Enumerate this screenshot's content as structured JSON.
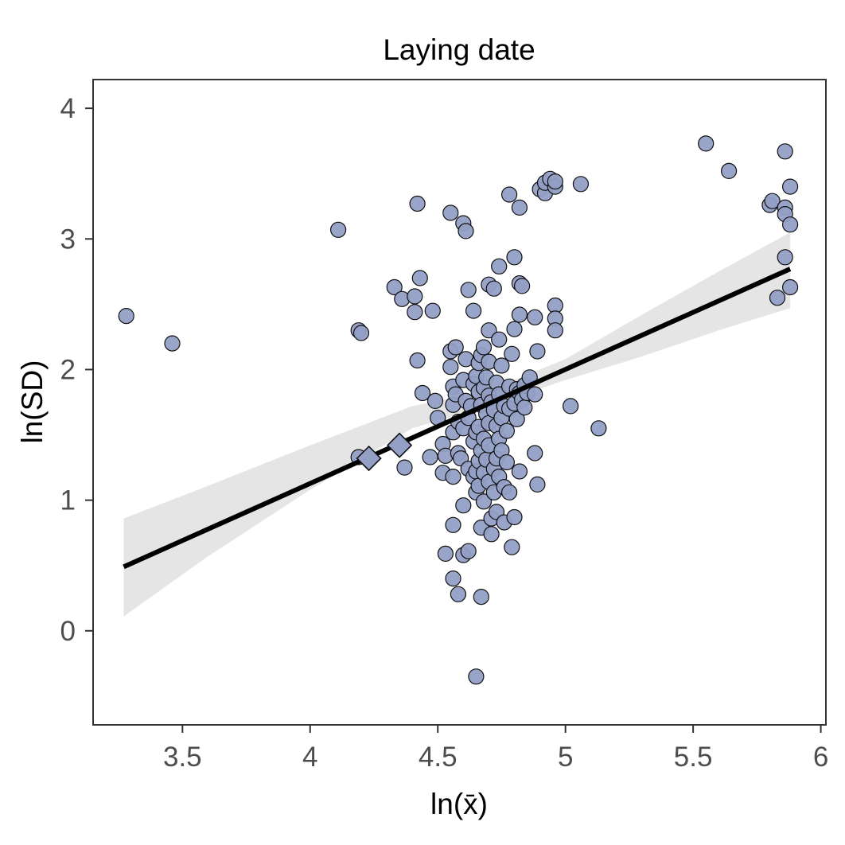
{
  "chart_data": {
    "type": "scatter",
    "title": "Laying date",
    "xlabel": "ln(x̄)",
    "ylabel": "ln(SD)",
    "xlim": [
      3.15,
      6.02
    ],
    "ylim": [
      -0.72,
      4.22
    ],
    "x_ticks": [
      3.5,
      4,
      4.5,
      5,
      5.5,
      6
    ],
    "x_tick_labels": [
      "3.5",
      "4",
      "4.5",
      "5",
      "5.5",
      "6"
    ],
    "y_ticks": [
      0,
      1,
      2,
      3,
      4
    ],
    "y_tick_labels": [
      "0",
      "1",
      "2",
      "3",
      "4"
    ],
    "grid": false,
    "colors": {
      "point_fill": "#949fc6",
      "point_stroke": "#111111",
      "fit_line": "#000000",
      "ci_band": "#bdbdbd"
    },
    "fit": {
      "type": "linear",
      "start": {
        "x": 3.27,
        "y": 0.49
      },
      "end": {
        "x": 5.88,
        "y": 2.77
      },
      "ci": [
        [
          3.27,
          0.11,
          0.86
        ],
        [
          3.6,
          0.57,
          1.11
        ],
        [
          4.0,
          1.08,
          1.42
        ],
        [
          4.4,
          1.55,
          1.72
        ],
        [
          4.7,
          1.72,
          1.84
        ],
        [
          5.0,
          1.92,
          2.08
        ],
        [
          5.3,
          2.1,
          2.42
        ],
        [
          5.6,
          2.3,
          2.75
        ],
        [
          5.88,
          2.47,
          3.05
        ]
      ]
    },
    "series": [
      {
        "marker": "circle",
        "points": [
          [
            3.28,
            2.41
          ],
          [
            3.46,
            2.2
          ],
          [
            4.11,
            3.07
          ],
          [
            4.19,
            2.3
          ],
          [
            4.2,
            2.28
          ],
          [
            4.19,
            1.33
          ],
          [
            4.33,
            2.63
          ],
          [
            4.36,
            2.54
          ],
          [
            4.37,
            1.25
          ],
          [
            4.41,
            2.56
          ],
          [
            4.41,
            2.44
          ],
          [
            4.42,
            3.27
          ],
          [
            4.43,
            2.7
          ],
          [
            4.42,
            2.07
          ],
          [
            4.44,
            1.82
          ],
          [
            4.47,
            1.33
          ],
          [
            4.48,
            2.45
          ],
          [
            4.49,
            1.76
          ],
          [
            4.5,
            1.63
          ],
          [
            4.52,
            1.43
          ],
          [
            4.52,
            1.21
          ],
          [
            4.53,
            1.34
          ],
          [
            4.53,
            0.59
          ],
          [
            4.55,
            3.2
          ],
          [
            4.55,
            2.14
          ],
          [
            4.55,
            2.02
          ],
          [
            4.56,
            1.87
          ],
          [
            4.56,
            1.73
          ],
          [
            4.56,
            1.52
          ],
          [
            4.56,
            1.18
          ],
          [
            4.56,
            0.81
          ],
          [
            4.56,
            0.4
          ],
          [
            4.57,
            2.17
          ],
          [
            4.57,
            1.81
          ],
          [
            4.58,
            1.6
          ],
          [
            4.58,
            1.36
          ],
          [
            4.58,
            0.28
          ],
          [
            4.59,
            1.32
          ],
          [
            4.6,
            3.12
          ],
          [
            4.6,
            1.92
          ],
          [
            4.6,
            1.55
          ],
          [
            4.6,
            0.96
          ],
          [
            4.6,
            0.58
          ],
          [
            4.61,
            3.06
          ],
          [
            4.61,
            2.08
          ],
          [
            4.61,
            1.76
          ],
          [
            4.62,
            2.61
          ],
          [
            4.62,
            1.63
          ],
          [
            4.62,
            1.24
          ],
          [
            4.62,
            0.61
          ],
          [
            4.63,
            1.72
          ],
          [
            4.64,
            2.45
          ],
          [
            4.64,
            1.89
          ],
          [
            4.64,
            1.45
          ],
          [
            4.64,
            1.18
          ],
          [
            4.65,
            1.95
          ],
          [
            4.65,
            1.52
          ],
          [
            4.65,
            1.22
          ],
          [
            4.65,
            1.06
          ],
          [
            4.65,
            -0.35
          ],
          [
            4.66,
            2.05
          ],
          [
            4.66,
            1.83
          ],
          [
            4.66,
            1.56
          ],
          [
            4.66,
            1.3
          ],
          [
            4.66,
            1.11
          ],
          [
            4.67,
            2.11
          ],
          [
            4.67,
            1.73
          ],
          [
            4.67,
            1.38
          ],
          [
            4.67,
            0.79
          ],
          [
            4.67,
            0.26
          ],
          [
            4.68,
            2.17
          ],
          [
            4.68,
            1.86
          ],
          [
            4.68,
            1.47
          ],
          [
            4.68,
            1.21
          ],
          [
            4.68,
            0.99
          ],
          [
            4.69,
            1.94
          ],
          [
            4.69,
            1.66
          ],
          [
            4.69,
            1.31
          ],
          [
            4.7,
            2.65
          ],
          [
            4.7,
            2.3
          ],
          [
            4.7,
            2.06
          ],
          [
            4.7,
            1.8
          ],
          [
            4.7,
            1.59
          ],
          [
            4.7,
            1.42
          ],
          [
            4.7,
            1.14
          ],
          [
            4.71,
            1.75
          ],
          [
            4.71,
            0.86
          ],
          [
            4.71,
            0.74
          ],
          [
            4.72,
            2.62
          ],
          [
            4.72,
            1.69
          ],
          [
            4.72,
            1.24
          ],
          [
            4.72,
            1.06
          ],
          [
            4.73,
            1.9
          ],
          [
            4.73,
            1.57
          ],
          [
            4.73,
            1.32
          ],
          [
            4.73,
            0.91
          ],
          [
            4.74,
            2.79
          ],
          [
            4.74,
            2.23
          ],
          [
            4.74,
            1.81
          ],
          [
            4.74,
            1.47
          ],
          [
            4.74,
            1.18
          ],
          [
            4.75,
            2.03
          ],
          [
            4.75,
            1.63
          ],
          [
            4.75,
            1.38
          ],
          [
            4.76,
            1.72
          ],
          [
            4.76,
            1.1
          ],
          [
            4.76,
            0.83
          ],
          [
            4.77,
            1.53
          ],
          [
            4.77,
            1.29
          ],
          [
            4.78,
            3.34
          ],
          [
            4.78,
            1.87
          ],
          [
            4.78,
            1.7
          ],
          [
            4.78,
            1.06
          ],
          [
            4.79,
            2.12
          ],
          [
            4.79,
            0.64
          ],
          [
            4.8,
            2.86
          ],
          [
            4.8,
            2.31
          ],
          [
            4.8,
            1.74
          ],
          [
            4.8,
            0.87
          ],
          [
            4.81,
            1.85
          ],
          [
            4.81,
            1.62
          ],
          [
            4.82,
            3.24
          ],
          [
            4.82,
            2.66
          ],
          [
            4.82,
            2.42
          ],
          [
            4.82,
            1.82
          ],
          [
            4.82,
            1.22
          ],
          [
            4.83,
            2.64
          ],
          [
            4.83,
            1.77
          ],
          [
            4.84,
            1.88
          ],
          [
            4.84,
            1.71
          ],
          [
            4.85,
            1.82
          ],
          [
            4.86,
            1.94
          ],
          [
            4.88,
            2.4
          ],
          [
            4.88,
            1.81
          ],
          [
            4.88,
            1.36
          ],
          [
            4.89,
            2.14
          ],
          [
            4.89,
            1.12
          ],
          [
            4.9,
            3.38
          ],
          [
            4.92,
            3.35
          ],
          [
            4.92,
            3.43
          ],
          [
            4.94,
            3.46
          ],
          [
            4.96,
            3.4
          ],
          [
            4.96,
            3.44
          ],
          [
            4.96,
            2.49
          ],
          [
            4.96,
            2.39
          ],
          [
            4.96,
            2.3
          ],
          [
            5.02,
            1.72
          ],
          [
            5.06,
            3.42
          ],
          [
            5.13,
            1.55
          ],
          [
            5.55,
            3.73
          ],
          [
            5.64,
            3.52
          ],
          [
            5.8,
            3.26
          ],
          [
            5.81,
            3.29
          ],
          [
            5.83,
            2.55
          ],
          [
            5.86,
            3.67
          ],
          [
            5.86,
            3.24
          ],
          [
            5.86,
            3.19
          ],
          [
            5.86,
            2.86
          ],
          [
            5.88,
            3.4
          ],
          [
            5.88,
            3.11
          ],
          [
            5.88,
            2.63
          ]
        ]
      },
      {
        "marker": "diamond",
        "points": [
          [
            4.23,
            1.32
          ],
          [
            4.35,
            1.42
          ]
        ]
      }
    ]
  }
}
